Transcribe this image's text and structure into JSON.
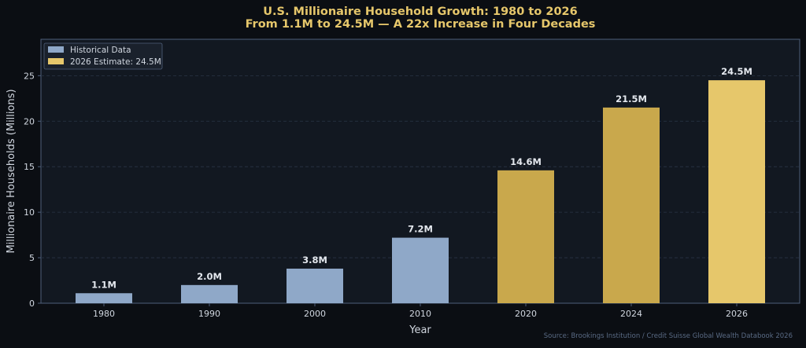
{
  "chart_data": {
    "type": "bar",
    "title": "U.S. Millionaire Household Growth: 1980 to 2026",
    "subtitle": "From 1.1M to 24.5M — A 22x Increase in Four Decades",
    "xlabel": "Year",
    "ylabel": "Millionaire Households (Millions)",
    "ylim": [
      0,
      29
    ],
    "yticks": [
      0,
      5,
      10,
      15,
      20,
      25
    ],
    "grid": "horizontal, dashed",
    "legend_position": "top-left",
    "categories": [
      "1980",
      "1990",
      "2000",
      "2010",
      "2020",
      "2024",
      "2026"
    ],
    "values": [
      1.1,
      2.0,
      3.8,
      7.2,
      14.6,
      21.5,
      24.5
    ],
    "labels": [
      "1.1M",
      "2.0M",
      "3.8M",
      "7.2M",
      "14.6M",
      "21.5M",
      "24.5M"
    ],
    "bar_colors": [
      "#8fa8c8",
      "#8fa8c8",
      "#8fa8c8",
      "#8fa8c8",
      "#c9a84c",
      "#c9a84c",
      "#e6c76b"
    ],
    "legend": [
      {
        "label": "Historical Data",
        "color": "#8fa8c8"
      },
      {
        "label": "2026 Estimate: 24.5M",
        "color": "#e6c76b"
      }
    ],
    "source": "Source: Brookings Institution / Credit Suisse Global Wealth Databook 2026"
  },
  "colors": {
    "background": "#0b0e13",
    "plot_background": "#121821",
    "title": "#e6c76b",
    "text": "#d0d6df",
    "axis": "#4f5f7a",
    "grid": "#2a3446",
    "source": "#5a6b85"
  }
}
